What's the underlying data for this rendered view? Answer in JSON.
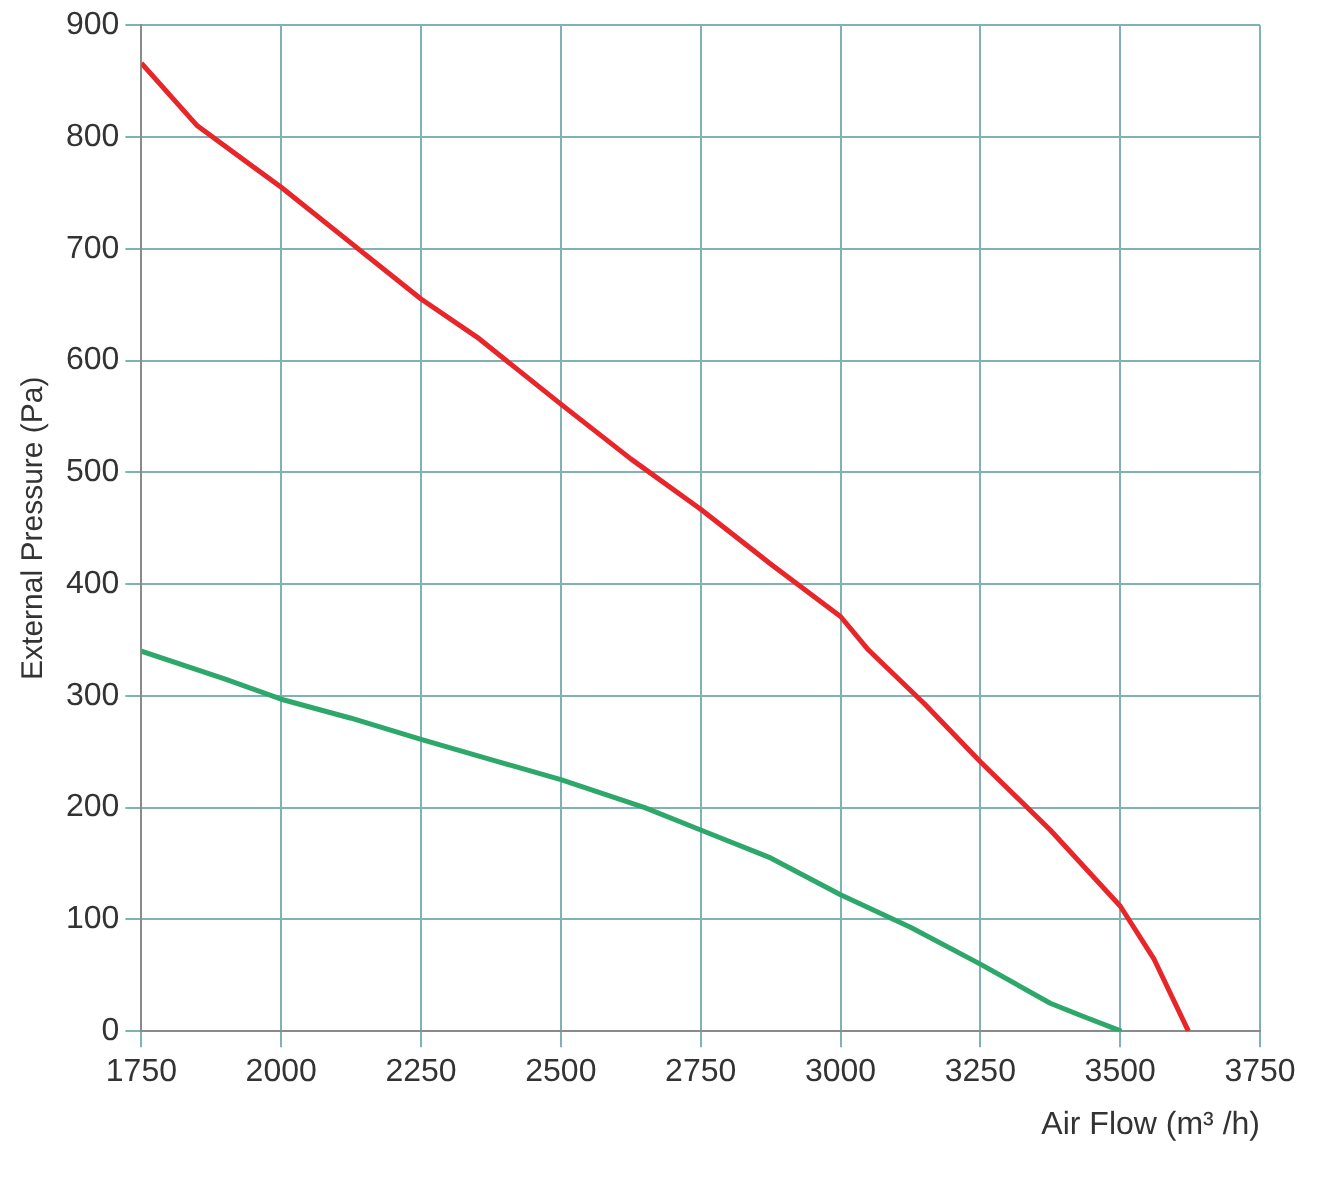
{
  "chart_data": {
    "type": "line",
    "xlabel": "Air Flow (m³ /h)",
    "ylabel": "External Pressure (Pa)",
    "xlim": [
      1750,
      3750
    ],
    "xticks": [
      1750,
      2000,
      2250,
      2500,
      2750,
      3000,
      3250,
      3500,
      3750
    ],
    "ylim": [
      0,
      900
    ],
    "yticks": [
      0,
      100,
      200,
      300,
      400,
      500,
      600,
      700,
      800,
      900
    ],
    "grid": true,
    "legend": false,
    "marker": "none",
    "line_style": "solid",
    "series": [
      {
        "color": "#e8262a",
        "x": [
          1750,
          1850,
          2000,
          2125,
          2250,
          2350,
          2500,
          2625,
          2750,
          2875,
          3000,
          3050,
          3150,
          3250,
          3375,
          3500,
          3560,
          3622
        ],
        "values": [
          866,
          810,
          755,
          705,
          655,
          621,
          561,
          512,
          467,
          418,
          371,
          341,
          293,
          241,
          180,
          112,
          65,
          0
        ]
      },
      {
        "color": "#2ea86a",
        "x": [
          1750,
          1900,
          2000,
          2125,
          2250,
          2375,
          2500,
          2650,
          2750,
          2875,
          3000,
          3125,
          3250,
          3375,
          3440,
          3502
        ],
        "values": [
          340,
          315,
          297,
          280,
          261,
          243,
          225,
          200,
          180,
          155,
          122,
          93,
          60,
          25,
          12,
          0
        ]
      }
    ]
  }
}
